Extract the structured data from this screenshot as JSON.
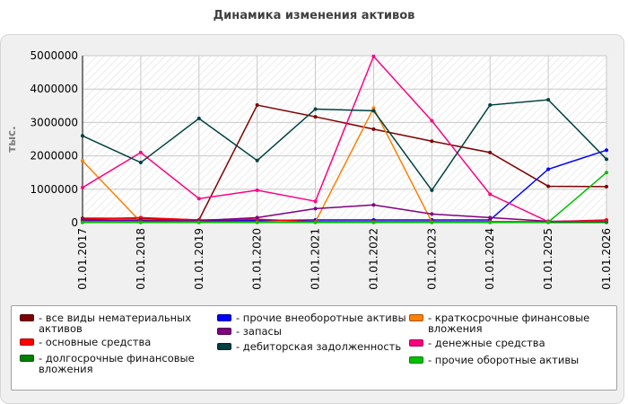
{
  "chart_data": {
    "type": "line",
    "title": "Динамика изменения активов",
    "ylabel": "тыс.",
    "xlabel": "",
    "ylim": [
      0,
      5000000
    ],
    "yticks": [
      "0",
      "1000000",
      "2000000",
      "3000000",
      "4000000",
      "5000000"
    ],
    "x": [
      "01.01.2017",
      "01.01.2018",
      "01.01.2019",
      "01.01.2020",
      "01.01.2021",
      "01.01.2022",
      "01.01.2023",
      "01.01.2024",
      "01.01.2025",
      "01.01.2026"
    ],
    "grid": true,
    "legend": "bottom",
    "series": [
      {
        "name": "все виды нематериальных активов",
        "legend_label": "- все виды нематериальных\nактивов",
        "color": "#7f0000",
        "values": [
          130000,
          130000,
          80000,
          3520000,
          3170000,
          2800000,
          2440000,
          2100000,
          1090000,
          1080000
        ]
      },
      {
        "name": "прочие внеоборотные активы",
        "legend_label": "- прочие внеоборотные активы",
        "color": "#0000ff",
        "values": [
          60000,
          60000,
          60000,
          60000,
          80000,
          80000,
          80000,
          80000,
          1600000,
          2170000
        ]
      },
      {
        "name": "краткосрочные финансовые вложения",
        "legend_label": "- краткосрочные финансовые\nвложения",
        "color": "#ff8000",
        "values": [
          1850000,
          20000,
          20000,
          20000,
          20000,
          3430000,
          20000,
          20000,
          20000,
          20000
        ]
      },
      {
        "name": "основные средства",
        "legend_label": "- основные средства",
        "color": "#ff0000",
        "values": [
          100000,
          150000,
          80000,
          100000,
          30000,
          30000,
          30000,
          30000,
          30000,
          80000
        ]
      },
      {
        "name": "запасы",
        "legend_label": "- запасы",
        "color": "#800080",
        "values": [
          80000,
          80000,
          60000,
          150000,
          420000,
          530000,
          260000,
          150000,
          40000,
          40000
        ]
      },
      {
        "name": "денежные средства",
        "legend_label": "- денежные средства",
        "color": "#ff0080",
        "values": [
          1050000,
          2100000,
          720000,
          970000,
          640000,
          4980000,
          3050000,
          850000,
          30000,
          30000
        ]
      },
      {
        "name": "долгосрочные финансовые вложения",
        "legend_label": "- долгосрочные финансовые\nвложения",
        "color": "#008000",
        "values": [
          10000,
          10000,
          10000,
          10000,
          10000,
          10000,
          10000,
          10000,
          10000,
          10000
        ]
      },
      {
        "name": "дебиторская задолженность",
        "legend_label": "- дебиторская задолженность",
        "color": "#004040",
        "values": [
          2600000,
          1800000,
          3120000,
          1860000,
          3400000,
          3350000,
          970000,
          3520000,
          3680000,
          1900000
        ]
      },
      {
        "name": "прочие оборотные активы",
        "legend_label": "- прочие оборотные активы",
        "color": "#00c000",
        "values": [
          10000,
          10000,
          10000,
          10000,
          10000,
          10000,
          10000,
          10000,
          10000,
          1500000
        ]
      }
    ]
  }
}
